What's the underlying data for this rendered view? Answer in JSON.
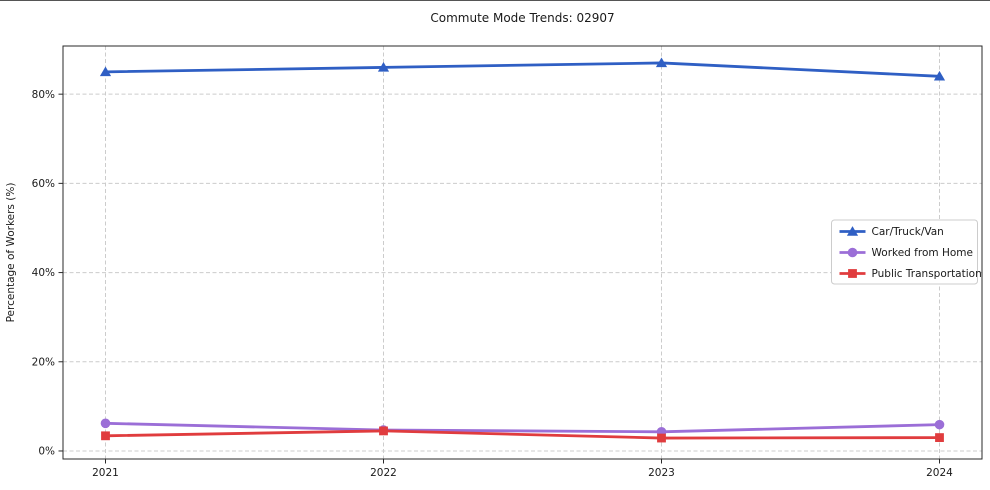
{
  "figure": {
    "title": "Commute Mode Trends: 02907"
  },
  "chart_data": {
    "type": "line",
    "title": "Commute Mode Trends: 02907",
    "xlabel": "",
    "ylabel": "Percentage of Workers (%)",
    "categories": [
      "2021",
      "2022",
      "2023",
      "2024"
    ],
    "series": [
      {
        "name": "Car/Truck/Van",
        "marker": "triangle",
        "color": "#2f5fc4",
        "values": [
          85.0,
          86.0,
          87.0,
          84.0
        ]
      },
      {
        "name": "Worked from Home",
        "marker": "circle",
        "color": "#9b6ed7",
        "values": [
          6.2,
          4.7,
          4.3,
          5.9
        ]
      },
      {
        "name": "Public Transportation",
        "marker": "square",
        "color": "#e03c3e",
        "values": [
          3.4,
          4.5,
          2.9,
          3.0
        ]
      }
    ],
    "ylim": [
      -1.8,
      90.8
    ],
    "yticks": [
      0,
      20,
      40,
      60,
      80
    ],
    "ytick_labels": [
      "0%",
      "20%",
      "40%",
      "60%",
      "80%"
    ],
    "grid": true,
    "grid_style": "dashed",
    "legend": {
      "position": "center-right",
      "labels": [
        "Car/Truck/Van",
        "Worked from Home",
        "Public Transportation"
      ]
    },
    "colors": {
      "grid": "#cccccc",
      "spine": "#2a2a2a",
      "background": "#ffffff"
    }
  }
}
